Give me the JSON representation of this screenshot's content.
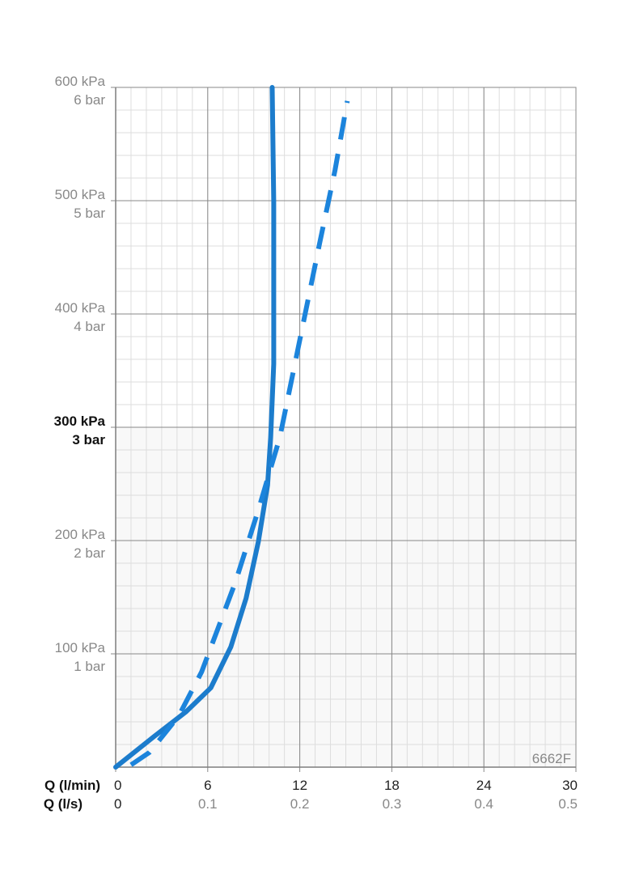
{
  "chart_data": {
    "type": "line",
    "code": "6662F",
    "xlabel": "Q (l/min)",
    "x2label": "Q (l/s)",
    "xlim": [
      0,
      30
    ],
    "xticks": [
      0,
      6,
      12,
      18,
      24,
      30
    ],
    "x2lim": [
      0,
      0.5
    ],
    "x2ticks": [
      0,
      0.1,
      0.2,
      0.3,
      0.4,
      0.5
    ],
    "ylim": [
      0,
      600
    ],
    "yticks": [
      {
        "value": 100,
        "label": "100 kPa"
      },
      {
        "value": 200,
        "label": "200 kPa"
      },
      {
        "value": 300,
        "label": "300 kPa"
      },
      {
        "value": 400,
        "label": "400 kPa"
      },
      {
        "value": 500,
        "label": "500 kPa"
      },
      {
        "value": 600,
        "label": "600 kPa"
      }
    ],
    "y2lim": [
      0,
      6
    ],
    "y2ticks": [
      {
        "value": 1,
        "label": "1 bar"
      },
      {
        "value": 2,
        "label": "2 bar"
      },
      {
        "value": 3,
        "label": "3 bar"
      },
      {
        "value": 4,
        "label": "4 bar"
      },
      {
        "value": 5,
        "label": "5 bar"
      },
      {
        "value": 6,
        "label": "6 bar"
      }
    ],
    "highlight_ytick": 300,
    "x_minor_step": 1,
    "y_minor_step": 20,
    "grid": true,
    "series": [
      {
        "color": "#1c7ccc",
        "dash": false,
        "x": [
          0,
          2.5,
          4.6,
          6.2,
          7.5,
          8.5,
          9.3,
          9.9,
          10.1,
          10.3,
          10.3,
          10.3,
          10.2
        ],
        "values": [
          0,
          27,
          49,
          70,
          106,
          149,
          199,
          249,
          291,
          356,
          427,
          499,
          600
        ]
      },
      {
        "color": "#1c84dc",
        "dash": true,
        "x": [
          1.0,
          2.2,
          4.1,
          5.6,
          7.8,
          9.3,
          10.7,
          12.0,
          13.3,
          14.3,
          15.1
        ],
        "values": [
          2,
          13,
          45,
          84,
          163,
          227,
          291,
          377,
          463,
          527,
          588
        ]
      }
    ]
  }
}
